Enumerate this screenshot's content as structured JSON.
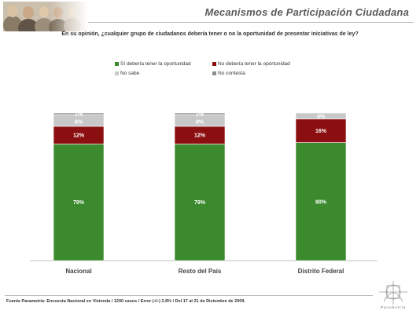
{
  "header": {
    "title": "Mecanismos de Participación Ciudadana"
  },
  "question": "En su opinión, ¿cualquier grupo de ciudadanos debería tener o no la oportunidad de presentar iniciativas de ley?",
  "footer": {
    "source": "Fuente Parametría: Encuesta Nacional en Vivienda / 1200 casos / Error (+/-) 2.8% / Del 17 al 21 de Diciembre de 2009."
  },
  "brand": {
    "name": "Parametría"
  },
  "colors": {
    "si": "#3b8a2e",
    "no": "#8b0f10",
    "nosabe": "#c8c8c8",
    "nocontesta": "#8c8c8c"
  },
  "chart_data": {
    "type": "bar",
    "stacked": true,
    "percent": true,
    "categories": [
      "Nacional",
      "Resto del País",
      "Distrito Federal"
    ],
    "series": [
      {
        "name": "Sí debería tener la oportunidad",
        "key": "si",
        "values": [
          79,
          79,
          80
        ],
        "labels": [
          "79%",
          "79%",
          "80%"
        ]
      },
      {
        "name": "No debería tener la oportunidad",
        "key": "no",
        "values": [
          12,
          12,
          16
        ],
        "labels": [
          "12%",
          "12%",
          "16%"
        ]
      },
      {
        "name": "No sabe",
        "key": "nosabe",
        "values": [
          8,
          8,
          4
        ],
        "labels": [
          "8%",
          "8%",
          "4%"
        ]
      },
      {
        "name": "No contesta",
        "key": "nocontesta",
        "values": [
          1,
          1,
          0
        ],
        "labels": [
          "1%",
          "1%",
          ""
        ]
      }
    ],
    "ylim": [
      0,
      100
    ],
    "legend": "top-center",
    "grid": false
  }
}
